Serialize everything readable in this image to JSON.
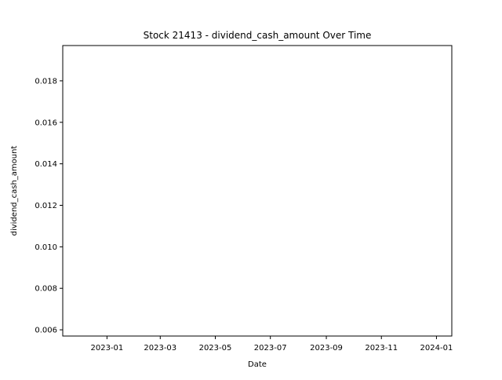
{
  "chart_data": {
    "type": "line",
    "title": "Stock 21413 - dividend_cash_amount Over Time",
    "xlabel": "Date",
    "ylabel": "dividend_cash_amount",
    "x_axis_type": "date",
    "xlim": [
      "2022-11-13",
      "2024-01-18"
    ],
    "ylim": [
      0.0057,
      0.0197
    ],
    "x_ticks": [
      "2023-01-01",
      "2023-03-01",
      "2023-05-01",
      "2023-07-01",
      "2023-09-01",
      "2023-11-01",
      "2024-01-01"
    ],
    "x_tick_labels": [
      "2023-01",
      "2023-03",
      "2023-05",
      "2023-07",
      "2023-09",
      "2023-11",
      "2024-01"
    ],
    "y_ticks": [
      0.006,
      0.008,
      0.01,
      0.012,
      0.014,
      0.016,
      0.018
    ],
    "y_tick_labels": [
      "0.006",
      "0.008",
      "0.010",
      "0.012",
      "0.014",
      "0.016",
      "0.018"
    ],
    "series": [
      {
        "name": "",
        "x": [],
        "y": []
      }
    ],
    "grid": false,
    "legend": "none"
  }
}
